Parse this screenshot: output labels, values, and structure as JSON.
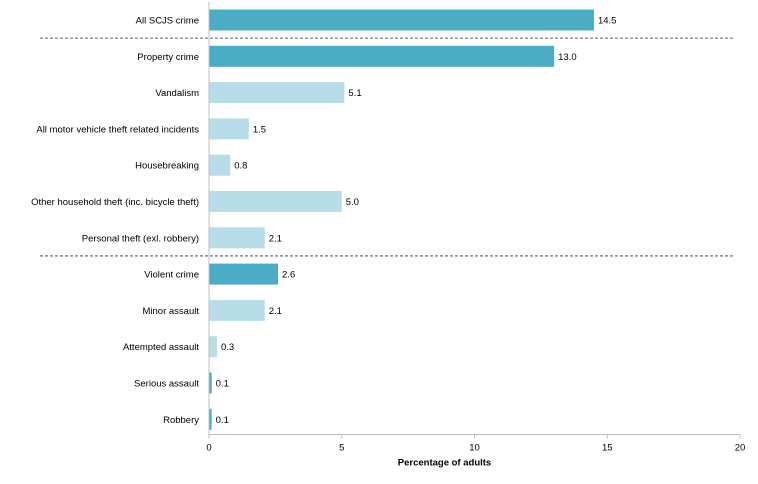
{
  "chart_data": {
    "type": "bar",
    "orientation": "horizontal",
    "categories": [
      "All SCJS crime",
      "Property crime",
      "Vandalism",
      "All motor vehicle theft related incidents",
      "Housebreaking",
      "Other household theft (inc. bicycle theft)",
      "Personal theft (exl. robbery)",
      "Violent crime",
      "Minor assault",
      "Attempted assault",
      "Serious assault",
      "Robbery"
    ],
    "values": [
      14.5,
      13.0,
      5.1,
      1.5,
      0.8,
      5.0,
      2.1,
      2.6,
      2.1,
      0.3,
      0.1,
      0.1
    ],
    "value_labels": [
      "14.5",
      "13.0",
      "5.1",
      "1.5",
      "0.8",
      "5.0",
      "2.1",
      "2.6",
      "2.1",
      "0.3",
      "0.1",
      "0.1"
    ],
    "bar_colors": [
      "#4bacc6",
      "#4bacc6",
      "#b7dde8",
      "#b7dde8",
      "#b7dde8",
      "#b7dde8",
      "#b7dde8",
      "#4bacc6",
      "#b7dde8",
      "#b7dde8",
      "#4bacc6",
      "#4bacc6"
    ],
    "group_separators_after": [
      "All SCJS crime",
      "Personal theft (exl. robbery)"
    ],
    "xlim": [
      0,
      20
    ],
    "x_ticks": [
      "0",
      "5",
      "10",
      "15",
      "20"
    ],
    "xlabel": "Percentage of adults",
    "ylabel": "",
    "title": "",
    "grid": false,
    "legend": "none"
  }
}
